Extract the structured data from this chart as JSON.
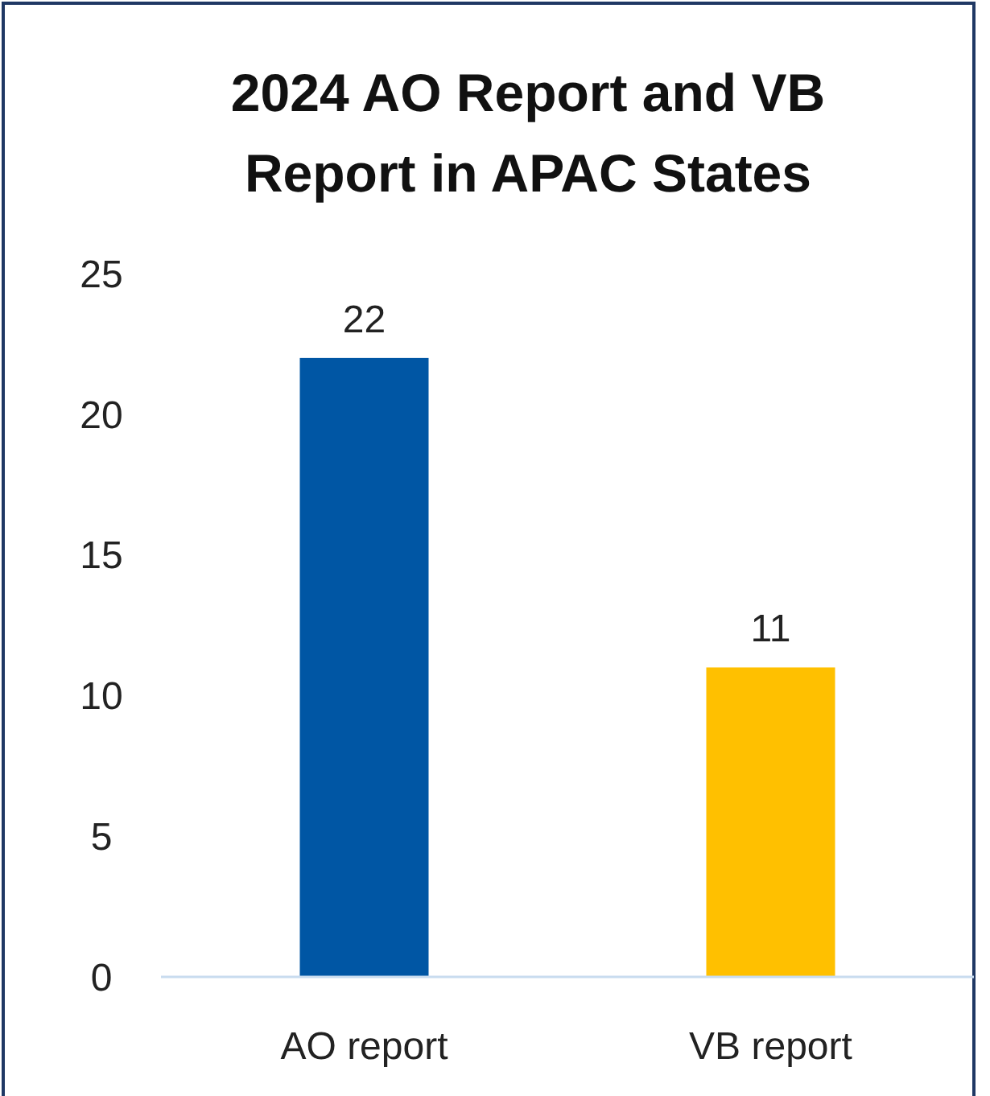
{
  "chart_data": {
    "type": "bar",
    "title": "2024 AO Report and VB Report in APAC States",
    "categories": [
      "AO report",
      "VB report"
    ],
    "values": [
      22,
      11
    ],
    "colors": [
      "#0056a4",
      "#ffc000"
    ],
    "ylim": [
      0,
      25
    ],
    "yticks": [
      0,
      5,
      10,
      15,
      20,
      25
    ],
    "grid": false,
    "data_labels": true
  }
}
